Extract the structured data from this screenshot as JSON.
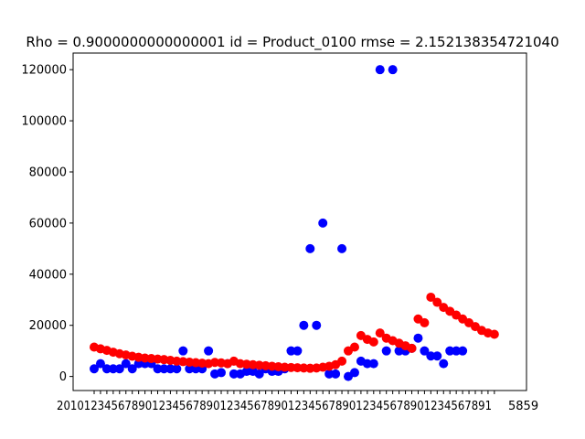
{
  "chart_data": {
    "type": "scatter",
    "title": "Rho = 0.9000000000000001 id = Product_0100 rmse = 2.152138354721040",
    "xlabel": "",
    "ylabel": "",
    "ylim": [
      -5500,
      126500
    ],
    "yticks": [
      0,
      20000,
      40000,
      60000,
      80000,
      100000,
      120000
    ],
    "ytick_labels": [
      "0",
      "20000",
      "40000",
      "60000",
      "80000",
      "100000",
      "120000"
    ],
    "x_tick_text": "2010123456789012345678901234567890123456789012345678901234567891",
    "x_tick_text_end": "5859",
    "grid": false,
    "legend": "none",
    "colors": {
      "actual": "#0000ff",
      "predicted": "#ff0000",
      "axes": "#000000",
      "background": "#ffffff"
    },
    "series": [
      {
        "color": "#0000ff",
        "values": [
          3000,
          5000,
          3000,
          3000,
          3000,
          5000,
          3000,
          5000,
          5000,
          5000,
          3000,
          3000,
          3000,
          3000,
          10000,
          3000,
          3000,
          3000,
          10000,
          1000,
          1500,
          5000,
          1000,
          1000,
          2000,
          2000,
          1000,
          3000,
          2000,
          2000,
          3000,
          10000,
          10000,
          20000,
          50000,
          20000,
          60000,
          1000,
          1000,
          50000,
          0,
          1500,
          6000,
          5000,
          5000,
          120000,
          10000,
          120000,
          10000,
          10000,
          11000,
          15000,
          10000,
          8000,
          8000,
          5000,
          10000,
          10000,
          10000
        ]
      },
      {
        "color": "#ff0000",
        "values": [
          11500,
          10800,
          10200,
          9500,
          8900,
          8400,
          7900,
          7500,
          7200,
          7000,
          6800,
          6600,
          6300,
          6000,
          5800,
          5600,
          5400,
          5200,
          5000,
          5500,
          5300,
          5000,
          6000,
          5000,
          4800,
          4600,
          4400,
          4200,
          4000,
          3800,
          3600,
          3500,
          3400,
          3300,
          3200,
          3300,
          3600,
          4000,
          4600,
          6000,
          10000,
          11500,
          16000,
          14500,
          13500,
          17000,
          15000,
          14000,
          13000,
          12000,
          11000,
          22500,
          21000,
          31000,
          29000,
          27000,
          25500,
          24000,
          22500,
          21000,
          19500,
          18000,
          17000,
          16500
        ]
      }
    ]
  }
}
